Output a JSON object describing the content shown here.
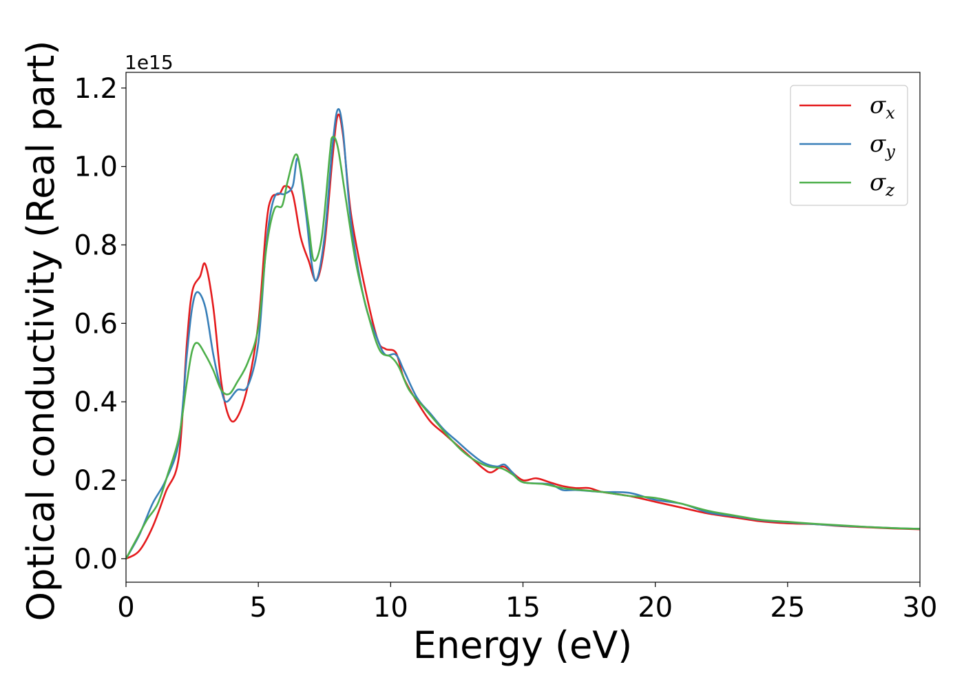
{
  "chart_data": {
    "type": "line",
    "xlabel": "Energy (eV)",
    "ylabel": "Optical conductivity (Real part)",
    "y_offset_label": "1e15",
    "xlim": [
      0,
      30
    ],
    "ylim": [
      -0.06,
      1.24
    ],
    "xticks": [
      0,
      5,
      10,
      15,
      20,
      25,
      30
    ],
    "xtick_labels": [
      "0",
      "5",
      "10",
      "15",
      "20",
      "25",
      "30"
    ],
    "yticks": [
      0.0,
      0.2,
      0.4,
      0.6,
      0.8,
      1.0,
      1.2
    ],
    "ytick_labels": [
      "0.0",
      "0.2",
      "0.4",
      "0.6",
      "0.8",
      "1.0",
      "1.2"
    ],
    "grid": false,
    "legend_position": "top-right",
    "series": [
      {
        "name": "σx",
        "base": "σ",
        "sub": "x",
        "color": "#e41a1c",
        "points": [
          [
            0,
            0
          ],
          [
            0.5,
            0.02
          ],
          [
            1,
            0.08
          ],
          [
            1.5,
            0.17
          ],
          [
            2,
            0.26
          ],
          [
            2.3,
            0.55
          ],
          [
            2.5,
            0.68
          ],
          [
            2.8,
            0.72
          ],
          [
            3.0,
            0.75
          ],
          [
            3.3,
            0.64
          ],
          [
            3.6,
            0.45
          ],
          [
            3.9,
            0.36
          ],
          [
            4.2,
            0.36
          ],
          [
            4.6,
            0.44
          ],
          [
            5.0,
            0.6
          ],
          [
            5.3,
            0.85
          ],
          [
            5.5,
            0.92
          ],
          [
            5.8,
            0.93
          ],
          [
            6.0,
            0.95
          ],
          [
            6.3,
            0.93
          ],
          [
            6.6,
            0.82
          ],
          [
            6.9,
            0.76
          ],
          [
            7.2,
            0.71
          ],
          [
            7.5,
            0.8
          ],
          [
            7.8,
            1.02
          ],
          [
            8.0,
            1.13
          ],
          [
            8.2,
            1.08
          ],
          [
            8.5,
            0.88
          ],
          [
            9.0,
            0.7
          ],
          [
            9.5,
            0.56
          ],
          [
            9.8,
            0.535
          ],
          [
            10.2,
            0.525
          ],
          [
            10.5,
            0.46
          ],
          [
            11,
            0.4
          ],
          [
            11.5,
            0.35
          ],
          [
            12,
            0.32
          ],
          [
            12.5,
            0.29
          ],
          [
            13,
            0.26
          ],
          [
            13.5,
            0.23
          ],
          [
            13.8,
            0.22
          ],
          [
            14.2,
            0.235
          ],
          [
            14.5,
            0.225
          ],
          [
            15,
            0.2
          ],
          [
            15.5,
            0.205
          ],
          [
            16,
            0.195
          ],
          [
            16.5,
            0.185
          ],
          [
            17,
            0.18
          ],
          [
            17.5,
            0.18
          ],
          [
            18,
            0.17
          ],
          [
            19,
            0.16
          ],
          [
            20,
            0.145
          ],
          [
            21,
            0.13
          ],
          [
            22,
            0.115
          ],
          [
            23,
            0.105
          ],
          [
            24,
            0.095
          ],
          [
            25,
            0.09
          ],
          [
            26,
            0.088
          ],
          [
            27,
            0.083
          ],
          [
            28,
            0.08
          ],
          [
            29,
            0.077
          ],
          [
            30,
            0.075
          ]
        ]
      },
      {
        "name": "σy",
        "base": "σ",
        "sub": "y",
        "color": "#377eb8",
        "points": [
          [
            0,
            0
          ],
          [
            0.5,
            0.06
          ],
          [
            1,
            0.14
          ],
          [
            1.5,
            0.2
          ],
          [
            2,
            0.3
          ],
          [
            2.3,
            0.52
          ],
          [
            2.5,
            0.64
          ],
          [
            2.7,
            0.68
          ],
          [
            3.0,
            0.64
          ],
          [
            3.3,
            0.52
          ],
          [
            3.6,
            0.43
          ],
          [
            3.8,
            0.4
          ],
          [
            4.2,
            0.43
          ],
          [
            4.6,
            0.44
          ],
          [
            5.0,
            0.55
          ],
          [
            5.3,
            0.8
          ],
          [
            5.6,
            0.92
          ],
          [
            6.0,
            0.93
          ],
          [
            6.3,
            0.95
          ],
          [
            6.5,
            1.02
          ],
          [
            6.8,
            0.88
          ],
          [
            7.0,
            0.76
          ],
          [
            7.2,
            0.71
          ],
          [
            7.5,
            0.82
          ],
          [
            7.8,
            1.05
          ],
          [
            8.0,
            1.145
          ],
          [
            8.2,
            1.09
          ],
          [
            8.5,
            0.86
          ],
          [
            9.0,
            0.66
          ],
          [
            9.5,
            0.56
          ],
          [
            9.8,
            0.52
          ],
          [
            10.2,
            0.52
          ],
          [
            10.5,
            0.48
          ],
          [
            11,
            0.41
          ],
          [
            11.5,
            0.37
          ],
          [
            12,
            0.33
          ],
          [
            12.5,
            0.3
          ],
          [
            13,
            0.27
          ],
          [
            13.5,
            0.245
          ],
          [
            14,
            0.235
          ],
          [
            14.3,
            0.24
          ],
          [
            14.6,
            0.22
          ],
          [
            15,
            0.195
          ],
          [
            16,
            0.19
          ],
          [
            16.5,
            0.175
          ],
          [
            17,
            0.175
          ],
          [
            18,
            0.17
          ],
          [
            19,
            0.168
          ],
          [
            20,
            0.15
          ],
          [
            21,
            0.14
          ],
          [
            22,
            0.118
          ],
          [
            23,
            0.108
          ],
          [
            24,
            0.098
          ],
          [
            25,
            0.093
          ],
          [
            26,
            0.088
          ],
          [
            27,
            0.084
          ],
          [
            28,
            0.081
          ],
          [
            29,
            0.078
          ],
          [
            30,
            0.076
          ]
        ]
      },
      {
        "name": "σz",
        "base": "σ",
        "sub": "z",
        "color": "#4daf4a",
        "points": [
          [
            0,
            0
          ],
          [
            0.4,
            0.05
          ],
          [
            0.8,
            0.1
          ],
          [
            1.2,
            0.14
          ],
          [
            1.6,
            0.22
          ],
          [
            2.0,
            0.31
          ],
          [
            2.3,
            0.45
          ],
          [
            2.5,
            0.53
          ],
          [
            2.7,
            0.55
          ],
          [
            3.0,
            0.52
          ],
          [
            3.3,
            0.48
          ],
          [
            3.6,
            0.43
          ],
          [
            3.9,
            0.42
          ],
          [
            4.2,
            0.45
          ],
          [
            4.6,
            0.5
          ],
          [
            5.0,
            0.59
          ],
          [
            5.3,
            0.79
          ],
          [
            5.6,
            0.89
          ],
          [
            5.9,
            0.9
          ],
          [
            6.1,
            0.96
          ],
          [
            6.4,
            1.03
          ],
          [
            6.6,
            0.99
          ],
          [
            6.9,
            0.85
          ],
          [
            7.1,
            0.76
          ],
          [
            7.4,
            0.82
          ],
          [
            7.7,
            1.03
          ],
          [
            7.8,
            1.075
          ],
          [
            8.0,
            1.05
          ],
          [
            8.3,
            0.92
          ],
          [
            8.7,
            0.75
          ],
          [
            9.2,
            0.61
          ],
          [
            9.6,
            0.53
          ],
          [
            10.0,
            0.515
          ],
          [
            10.3,
            0.49
          ],
          [
            10.7,
            0.43
          ],
          [
            11.2,
            0.39
          ],
          [
            11.7,
            0.35
          ],
          [
            12.2,
            0.31
          ],
          [
            12.7,
            0.275
          ],
          [
            13.2,
            0.25
          ],
          [
            13.7,
            0.235
          ],
          [
            14.2,
            0.23
          ],
          [
            14.6,
            0.215
          ],
          [
            15,
            0.195
          ],
          [
            15.8,
            0.19
          ],
          [
            16.5,
            0.18
          ],
          [
            17.2,
            0.175
          ],
          [
            18,
            0.17
          ],
          [
            19,
            0.16
          ],
          [
            20,
            0.155
          ],
          [
            21,
            0.14
          ],
          [
            22,
            0.122
          ],
          [
            23,
            0.11
          ],
          [
            24,
            0.099
          ],
          [
            25,
            0.094
          ],
          [
            26,
            0.089
          ],
          [
            27,
            0.085
          ],
          [
            28,
            0.081
          ],
          [
            29,
            0.078
          ],
          [
            30,
            0.076
          ]
        ]
      }
    ]
  }
}
